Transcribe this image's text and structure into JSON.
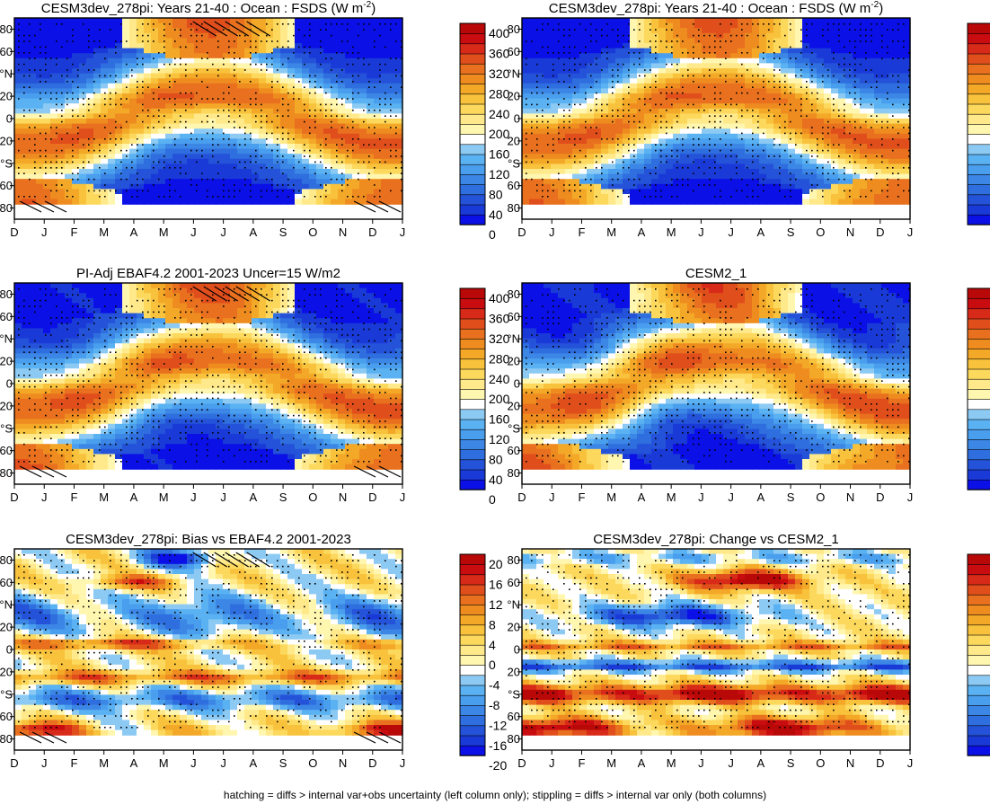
{
  "caption": "hatching = diffs > internal var+obs uncertainty (left column only); stippling = diffs > internal var only (both columns)",
  "chart_data": [
    {
      "type": "heatmap",
      "field": "mean",
      "title": "CESM3dev_278pi: Years 21-40 : Ocean : FSDS (W m",
      "title_sup": "-2",
      "title_end": ")",
      "hatched": true
    },
    {
      "type": "heatmap",
      "field": "mean",
      "title": "CESM3dev_278pi: Years 21-40 : Ocean : FSDS (W m",
      "title_sup": "-2",
      "title_end": ")",
      "hatched": false
    },
    {
      "type": "heatmap",
      "field": "mean",
      "title": "PI-Adj EBAF4.2 2001-2023 Uncer=15 W/m2",
      "title_sup": "",
      "title_end": "",
      "hatched": true
    },
    {
      "type": "heatmap",
      "field": "mean",
      "title": "CESM2_1",
      "title_sup": "",
      "title_end": "",
      "hatched": false
    },
    {
      "type": "heatmap",
      "field": "diff",
      "title": "CESM3dev_278pi: Bias vs EBAF4.2 2001-2023",
      "title_sup": "",
      "title_end": "",
      "hatched": true
    },
    {
      "type": "heatmap",
      "field": "diff2",
      "title": "CESM3dev_278pi: Change vs CESM2_1",
      "title_sup": "",
      "title_end": "",
      "hatched": false
    }
  ],
  "x_tick_labels": [
    "D",
    "J",
    "F",
    "M",
    "A",
    "M",
    "J",
    "J",
    "A",
    "S",
    "O",
    "N",
    "D",
    "J"
  ],
  "y_tick_labels": [
    "80",
    "60",
    "°N",
    "20",
    "0",
    "20",
    "°S",
    "60",
    "80"
  ],
  "y_tick_values": [
    80,
    60,
    40,
    20,
    0,
    -20,
    -40,
    -60,
    -80
  ],
  "ylim": [
    -90,
    90
  ],
  "colorbar_mean": {
    "labels": [
      "400",
      "360",
      "320",
      "280",
      "240",
      "200",
      "160",
      "120",
      "80",
      "40",
      "0"
    ],
    "colors": [
      "#0a10e6",
      "#1a3ad8",
      "#2452d8",
      "#2f6ede",
      "#3c86e6",
      "#4a9eee",
      "#5ab2f2",
      "#8ccaf4",
      "#ffffff",
      "#fff6b0",
      "#ffe98a",
      "#fcd85c",
      "#f8c23c",
      "#f4a828",
      "#ee8c20",
      "#e8701e",
      "#e04e1c",
      "#d82a18",
      "#c80c10",
      "#b80808"
    ]
  },
  "colorbar_diff": {
    "labels": [
      "20",
      "16",
      "12",
      "8",
      "4",
      "0",
      "-4",
      "-8",
      "-12",
      "-16",
      "-20"
    ],
    "colors": [
      "#0a10e6",
      "#1a3ad8",
      "#2452d8",
      "#2f6ede",
      "#3c86e6",
      "#4a9eee",
      "#5ab2f2",
      "#8ccaf4",
      "#ffffff",
      "#fff6b0",
      "#ffe98a",
      "#fcd85c",
      "#f8c23c",
      "#f4a828",
      "#ee8c20",
      "#e8701e",
      "#e04e1c",
      "#d82a18",
      "#c80c10",
      "#b80808"
    ]
  }
}
